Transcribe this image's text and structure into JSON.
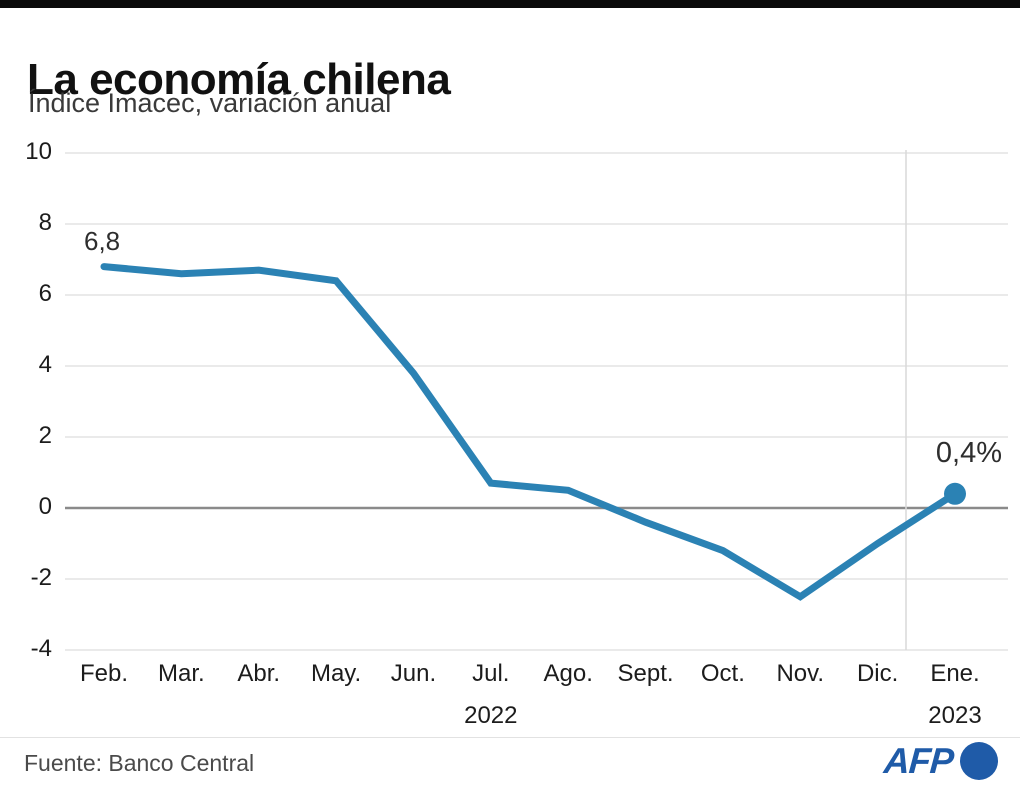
{
  "header": {
    "title": "La economía chilena",
    "subtitle": "Índice Imacec, variación anual"
  },
  "chart_data": {
    "type": "line",
    "title": "La economía chilena",
    "subtitle": "Índice Imacec, variación anual",
    "categories": [
      "Feb.",
      "Mar.",
      "Abr.",
      "May.",
      "Jun.",
      "Jul.",
      "Ago.",
      "Sept.",
      "Oct.",
      "Nov.",
      "Dic.",
      "Ene."
    ],
    "values": [
      6.8,
      6.6,
      6.7,
      6.4,
      3.8,
      0.7,
      0.5,
      -0.4,
      -1.2,
      -2.5,
      -1.0,
      0.4
    ],
    "year_labels": [
      {
        "text": "2022",
        "category_index": 5
      },
      {
        "text": "2023",
        "category_index": 11
      }
    ],
    "yticks": [
      10,
      8,
      6,
      4,
      2,
      0,
      -2,
      -4
    ],
    "ylim": [
      -4,
      10
    ],
    "grid": true,
    "legend": "none",
    "line_color": "#2b82b4",
    "grid_color": "#e3e3e3",
    "zero_line_color": "#8a8a8a",
    "year_divider_color": "#d9d9d9",
    "annotations": [
      {
        "text": "6,8",
        "point_index": 0
      },
      {
        "text": "0,4%",
        "point_index": 11
      }
    ]
  },
  "footer": {
    "source": "Fuente: Banco Central",
    "logo_text": "AFP",
    "logo_color": "#1f5ba8"
  }
}
